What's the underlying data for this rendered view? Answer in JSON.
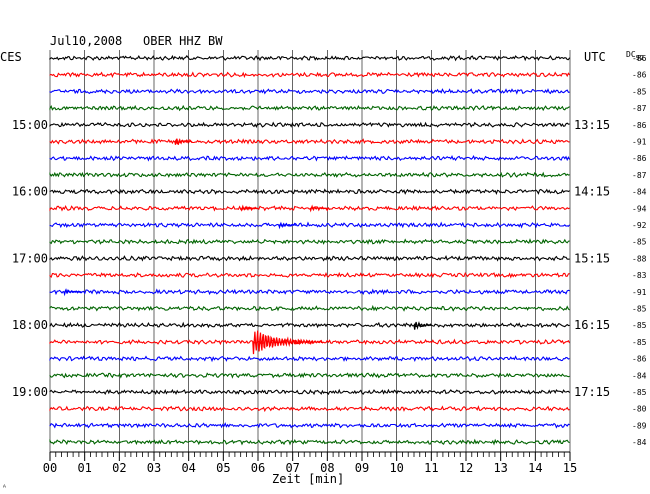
{
  "header": {
    "date": "Jul10,2008",
    "station": "OBER HHZ BW"
  },
  "left_zone": "CES",
  "right_zone": "UTC",
  "dc_header": {
    "base": "DC",
    "sub": "92"
  },
  "corner_mark": "ᴬ",
  "chart_data": {
    "type": "line",
    "xlabel": "Zeit [min]",
    "xlim": [
      0,
      15
    ],
    "x_ticks": [
      "00",
      "01",
      "02",
      "03",
      "04",
      "05",
      "06",
      "07",
      "08",
      "09",
      "10",
      "11",
      "12",
      "13",
      "14",
      "15"
    ],
    "trace_colors": [
      "#000000",
      "#ff0000",
      "#0000ff",
      "#006400"
    ],
    "left_time_labels": [
      {
        "trace": 4,
        "label": "15:00"
      },
      {
        "trace": 8,
        "label": "16:00"
      },
      {
        "trace": 12,
        "label": "17:00"
      },
      {
        "trace": 16,
        "label": "18:00"
      },
      {
        "trace": 20,
        "label": "19:00"
      }
    ],
    "right_time_labels": [
      {
        "trace": 4,
        "label": "13:15"
      },
      {
        "trace": 8,
        "label": "14:15"
      },
      {
        "trace": 12,
        "label": "15:15"
      },
      {
        "trace": 16,
        "label": "16:15"
      },
      {
        "trace": 20,
        "label": "17:15"
      }
    ],
    "dc_offsets": [
      "-86",
      "-86",
      "-85",
      "-87",
      "-86",
      "-91",
      "-86",
      "-87",
      "-84",
      "-94",
      "-92",
      "-85",
      "-88",
      "-83",
      "-91",
      "-85",
      "-85",
      "-85",
      "-86",
      "-84",
      "-85",
      "-80",
      "-89",
      "-84"
    ],
    "events": [
      {
        "trace": 5,
        "minute": 3.6,
        "amplitude": 6
      },
      {
        "trace": 9,
        "minute": 5.5,
        "amplitude": 3
      },
      {
        "trace": 9,
        "minute": 7.5,
        "amplitude": 3
      },
      {
        "trace": 10,
        "minute": 6.6,
        "amplitude": 3
      },
      {
        "trace": 14,
        "minute": 0.4,
        "amplitude": 3
      },
      {
        "trace": 16,
        "minute": 10.5,
        "amplitude": 5
      },
      {
        "trace": 17,
        "minute": 5.85,
        "amplitude": 16
      }
    ]
  }
}
